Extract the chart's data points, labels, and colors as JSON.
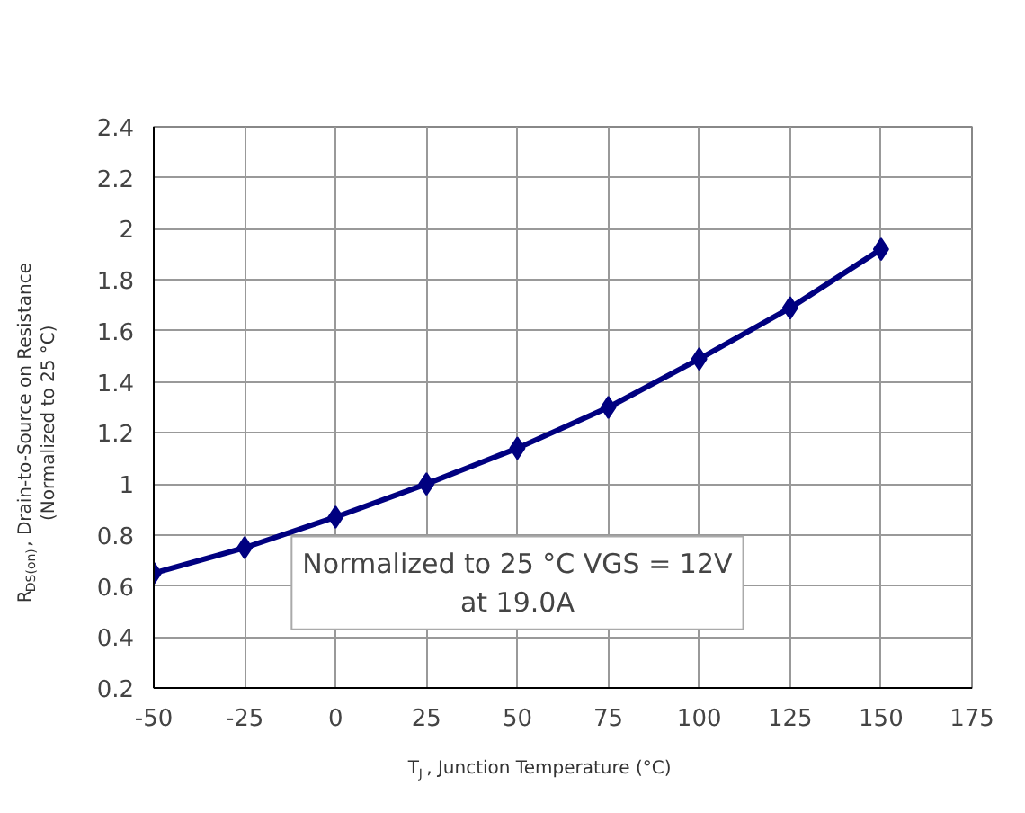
{
  "chart_data": {
    "type": "line",
    "xlabel": "T$_{J}$, Junction Temperature (°C)",
    "ylabel": "R$_{DS(on)}$, Drain-to-Source on Resistance\n(Normalized to 25 °C)",
    "x": [
      -50,
      -25,
      0,
      25,
      50,
      75,
      100,
      125,
      150
    ],
    "series": [
      {
        "color": "#000080",
        "values": [
          0.65,
          0.75,
          0.87,
          1.0,
          1.14,
          1.3,
          1.49,
          1.69,
          1.92
        ]
      }
    ],
    "xlim": [
      -50,
      175
    ],
    "xticks": [
      -50,
      -25,
      0,
      25,
      50,
      75,
      100,
      125,
      150,
      175
    ],
    "ylim": [
      0.2,
      2.4
    ],
    "yticks": [
      0.2,
      0.4,
      0.6,
      0.8,
      1,
      1.2,
      1.4,
      1.6,
      1.8,
      2,
      2.2,
      2.4
    ],
    "grid": true,
    "marker": "diamond",
    "line_style": "solid",
    "annotations": [
      "Normalized to 25 °C VGS = 12V\nat 19.0A"
    ]
  }
}
